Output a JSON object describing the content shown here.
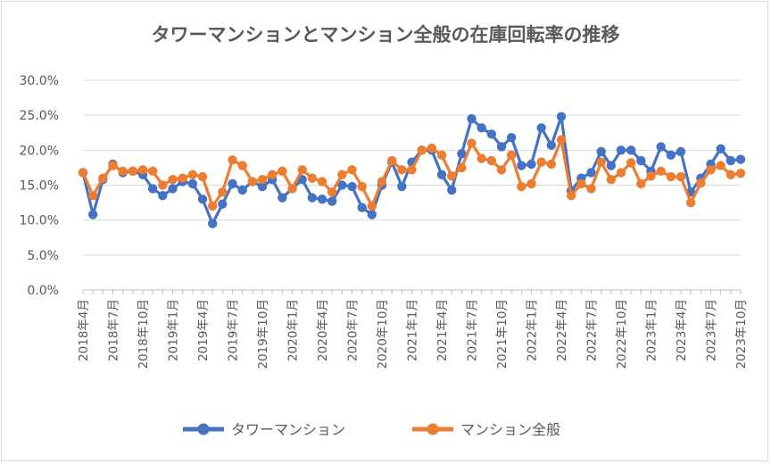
{
  "chart_data": {
    "type": "line",
    "title": "タワーマンションとマンション全般の在庫回転率の推移",
    "xlabel": "",
    "ylabel": "",
    "ylim": [
      0,
      30
    ],
    "yticks": [
      "0.0%",
      "5.0%",
      "10.0%",
      "15.0%",
      "20.0%",
      "25.0%",
      "30.0%"
    ],
    "grid": true,
    "legend_position": "bottom",
    "x_tick_labels": [
      "2018年4月",
      "2018年7月",
      "2018年10月",
      "2019年1月",
      "2019年4月",
      "2019年7月",
      "2019年10月",
      "2020年1月",
      "2020年4月",
      "2020年7月",
      "2020年10月",
      "2021年1月",
      "2021年4月",
      "2021年7月",
      "2021年10月",
      "2022年1月",
      "2022年4月",
      "2022年7月",
      "2022年10月",
      "2023年1月",
      "2023年4月",
      "2023年7月",
      "2023年10月"
    ],
    "x_tick_every": 3,
    "categories": [
      "2018-04",
      "2018-05",
      "2018-06",
      "2018-07",
      "2018-08",
      "2018-09",
      "2018-10",
      "2018-11",
      "2018-12",
      "2019-01",
      "2019-02",
      "2019-03",
      "2019-04",
      "2019-05",
      "2019-06",
      "2019-07",
      "2019-08",
      "2019-09",
      "2019-10",
      "2019-11",
      "2019-12",
      "2020-01",
      "2020-02",
      "2020-03",
      "2020-04",
      "2020-05",
      "2020-06",
      "2020-07",
      "2020-08",
      "2020-09",
      "2020-10",
      "2020-11",
      "2020-12",
      "2021-01",
      "2021-02",
      "2021-03",
      "2021-04",
      "2021-05",
      "2021-06",
      "2021-07",
      "2021-08",
      "2021-09",
      "2021-10",
      "2021-11",
      "2021-12",
      "2022-01",
      "2022-02",
      "2022-03",
      "2022-04",
      "2022-05",
      "2022-06",
      "2022-07",
      "2022-08",
      "2022-09",
      "2022-10",
      "2022-11",
      "2022-12",
      "2023-01",
      "2023-02",
      "2023-03",
      "2023-04",
      "2023-05",
      "2023-06",
      "2023-07",
      "2023-08",
      "2023-09",
      "2023-10"
    ],
    "series": [
      {
        "name": "タワーマンション",
        "color": "#4472c4",
        "values": [
          16.8,
          10.8,
          15.8,
          18.0,
          16.8,
          17.0,
          16.5,
          14.5,
          13.5,
          14.5,
          15.5,
          15.2,
          13.0,
          9.5,
          12.3,
          15.2,
          14.3,
          15.5,
          14.8,
          15.8,
          13.2,
          14.5,
          15.8,
          13.2,
          13.0,
          12.7,
          15.0,
          14.8,
          11.8,
          10.8,
          15.0,
          18.3,
          14.8,
          18.3,
          20.0,
          20.0,
          16.5,
          14.3,
          19.5,
          24.5,
          23.2,
          22.3,
          20.5,
          21.8,
          17.8,
          18.0,
          23.2,
          20.7,
          24.8,
          14.2,
          16.0,
          16.8,
          19.8,
          17.8,
          20.0,
          20.0,
          18.5,
          17.0,
          20.5,
          19.3,
          19.8,
          14.0,
          16.0,
          18.0,
          20.2,
          18.5,
          18.7
        ]
      },
      {
        "name": "マンション全般",
        "color": "#ed7d31",
        "values": [
          16.8,
          13.5,
          16.0,
          17.8,
          17.0,
          17.0,
          17.2,
          17.0,
          15.0,
          15.8,
          16.0,
          16.5,
          16.2,
          12.0,
          14.0,
          18.6,
          17.8,
          15.5,
          15.8,
          16.5,
          17.0,
          14.5,
          17.2,
          16.0,
          15.5,
          14.0,
          16.5,
          17.2,
          14.8,
          12.0,
          15.5,
          18.5,
          17.2,
          17.2,
          20.0,
          20.3,
          19.3,
          16.3,
          17.5,
          21.0,
          18.8,
          18.5,
          17.2,
          19.3,
          14.8,
          15.2,
          18.3,
          18.0,
          21.5,
          13.5,
          15.2,
          14.5,
          18.3,
          15.8,
          16.8,
          18.2,
          15.2,
          16.3,
          17.0,
          16.2,
          16.2,
          12.5,
          15.3,
          17.2,
          17.8,
          16.5,
          16.7
        ]
      }
    ]
  }
}
